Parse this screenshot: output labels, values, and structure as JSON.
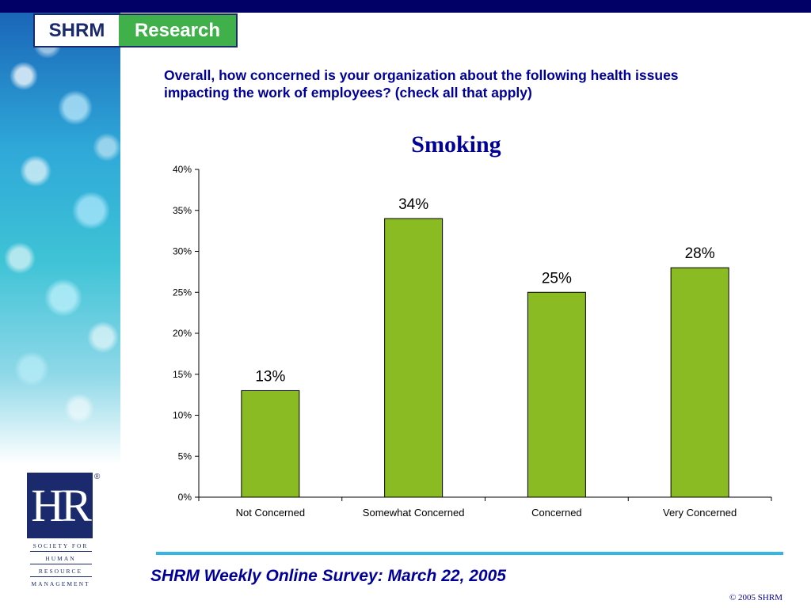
{
  "header": {
    "logo_left": "SHRM",
    "logo_right": "Research"
  },
  "question": "Overall, how concerned is your organization about the following health issues impacting the work of employees? (check all that apply)",
  "chart_data": {
    "type": "bar",
    "title": "Smoking",
    "categories": [
      "Not Concerned",
      "Somewhat Concerned",
      "Concerned",
      "Very Concerned"
    ],
    "values": [
      13,
      34,
      25,
      28
    ],
    "value_labels": [
      "13%",
      "34%",
      "25%",
      "28%"
    ],
    "xlabel": "",
    "ylabel": "",
    "ylim": [
      0,
      40
    ],
    "yticks": [
      "0%",
      "5%",
      "10%",
      "15%",
      "20%",
      "25%",
      "30%",
      "35%",
      "40%"
    ],
    "grid": false,
    "bar_color": "#8ABB22"
  },
  "hr_logo": {
    "mark": "HR",
    "reg": "®",
    "lines": [
      "SOCIETY FOR",
      "HUMAN",
      "RESOURCE",
      "MANAGEMENT"
    ]
  },
  "footer": {
    "title": "SHRM Weekly Online Survey: March 22, 2005",
    "copyright": "© 2005 SHRM"
  },
  "colors": {
    "brand_navy": "#000066",
    "title_blue": "#000099",
    "research_green": "#3FB04A",
    "divider_cyan": "#33B5E5"
  }
}
